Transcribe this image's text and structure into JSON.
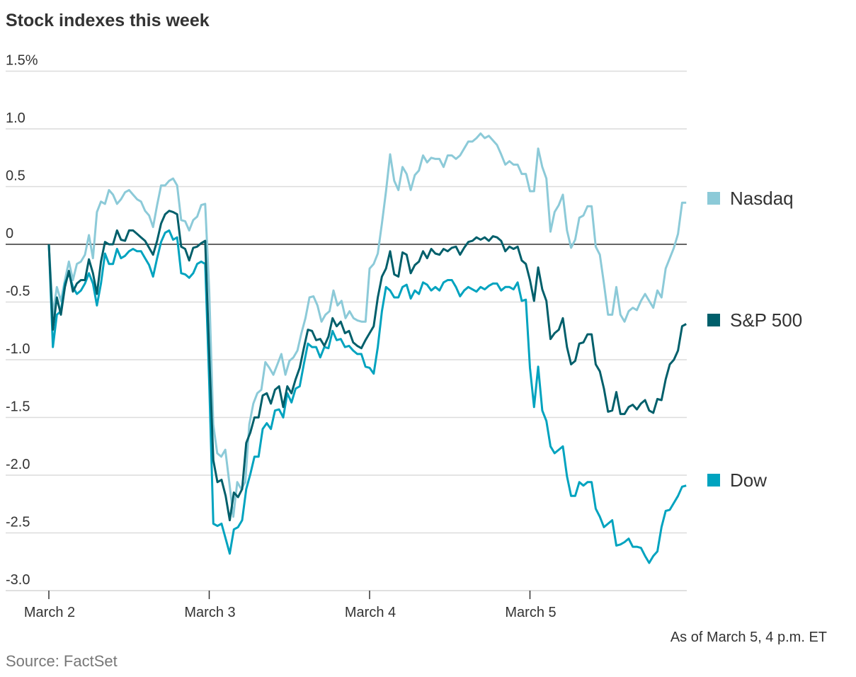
{
  "chart_data": {
    "type": "line",
    "title": "Stock indexes this week",
    "xlabel": "",
    "ylabel": "",
    "note": "As of March 5, 4 p.m. ET",
    "source": "Source: FactSet",
    "x_categories": [
      "March 2",
      "March 3",
      "March 4",
      "March 5"
    ],
    "x_unit": "trading day (each day's values evenly spaced from open to close)",
    "ylim": [
      -3.0,
      1.5
    ],
    "y_ticks": [
      1.5,
      1.0,
      0.5,
      0,
      -0.5,
      -1.0,
      -1.5,
      -2.0,
      -2.5,
      -3.0
    ],
    "y_tick_labels": [
      "1.5%",
      "1.0",
      "0.5",
      "0",
      "-0.5",
      "-1.0",
      "-1.5",
      "-2.0",
      "-2.5",
      "-3.0"
    ],
    "grid": true,
    "legend_placement": "right",
    "series": [
      {
        "name": "Nasdaq",
        "color": "#8ccad8",
        "days": [
          [
            0,
            -0.61,
            -0.37,
            -0.49,
            -0.31,
            -0.15,
            -0.31,
            -0.17,
            -0.15,
            -0.09,
            0.08,
            -0.12,
            0.28,
            0.37,
            0.35,
            0.47,
            0.43,
            0.35,
            0.39,
            0.45,
            0.47,
            0.43,
            0.39,
            0.37,
            0.29,
            0.25,
            0.15,
            0.34,
            0.51,
            0.51,
            0.55,
            0.57,
            0.51,
            0.21,
            0.2,
            0.12,
            0.21,
            0.24,
            0.34,
            0.35
          ],
          [
            -0.4,
            -1.56,
            -1.81,
            -1.84,
            -1.78,
            -2.06,
            -2.36,
            -2.06,
            -2.12,
            -2.06,
            -1.56,
            -1.38,
            -1.29,
            -1.26,
            -1.02,
            -1.07,
            -1.13,
            -1.04,
            -0.95,
            -1.13,
            -1.01,
            -0.98,
            -0.92,
            -0.77,
            -0.64,
            -0.46,
            -0.45,
            -0.53,
            -0.67,
            -0.61,
            -0.58,
            -0.4,
            -0.53,
            -0.49,
            -0.64,
            -0.58,
            -0.64,
            -0.66,
            -0.67,
            -0.67
          ],
          [
            -0.21,
            -0.17,
            -0.08,
            0.18,
            0.46,
            0.78,
            0.55,
            0.47,
            0.67,
            0.61,
            0.47,
            0.6,
            0.64,
            0.77,
            0.71,
            0.75,
            0.74,
            0.74,
            0.67,
            0.77,
            0.77,
            0.74,
            0.77,
            0.83,
            0.89,
            0.89,
            0.92,
            0.96,
            0.92,
            0.94,
            0.9,
            0.86,
            0.78,
            0.69,
            0.72,
            0.69,
            0.69,
            0.61,
            0.61
          ],
          [
            0.46,
            0.46,
            0.83,
            0.67,
            0.57,
            0.11,
            0.28,
            0.34,
            0.43,
            0.12,
            -0.03,
            0.04,
            0.23,
            0.25,
            0.33,
            0.33,
            -0.02,
            -0.09,
            -0.34,
            -0.61,
            -0.61,
            -0.37,
            -0.61,
            -0.67,
            -0.58,
            -0.55,
            -0.57,
            -0.49,
            -0.43,
            -0.49,
            -0.55,
            -0.4,
            -0.46,
            -0.21,
            -0.12,
            -0.03,
            0.09,
            0.36,
            0.36
          ]
        ]
      },
      {
        "name": "S&P 500",
        "color": "#005f6b",
        "days": [
          [
            0,
            -0.74,
            -0.46,
            -0.61,
            -0.37,
            -0.23,
            -0.41,
            -0.34,
            -0.31,
            -0.31,
            -0.13,
            -0.25,
            -0.43,
            -0.15,
            0.02,
            0,
            0,
            0.12,
            0.04,
            0.03,
            0.12,
            0.12,
            0.09,
            0.06,
            0.03,
            -0.03,
            -0.09,
            0.03,
            0.18,
            0.26,
            0.29,
            0.28,
            0.26,
            -0.02,
            -0.04,
            -0.14,
            -0.03,
            -0.02,
            0.01,
            0.03
          ],
          [
            -0.95,
            -1.87,
            -2.06,
            -2.04,
            -2.18,
            -2.39,
            -2.15,
            -2.19,
            -2.12,
            -1.72,
            -1.63,
            -1.5,
            -1.5,
            -1.31,
            -1.29,
            -1.38,
            -1.26,
            -1.23,
            -1.41,
            -1.23,
            -1.29,
            -1.17,
            -1.07,
            -0.9,
            -0.74,
            -0.75,
            -0.83,
            -0.82,
            -0.88,
            -0.8,
            -0.64,
            -0.71,
            -0.67,
            -0.77,
            -0.75,
            -0.85,
            -0.88,
            -0.9,
            -0.83
          ],
          [
            -0.77,
            -0.71,
            -0.46,
            -0.28,
            -0.21,
            -0.06,
            -0.26,
            -0.28,
            -0.07,
            -0.09,
            -0.25,
            -0.18,
            -0.15,
            -0.06,
            -0.12,
            -0.04,
            -0.08,
            -0.09,
            -0.04,
            -0.06,
            -0.03,
            -0.02,
            -0.09,
            -0.03,
            0.02,
            0.03,
            0.06,
            0.04,
            0.06,
            0.03,
            0.07,
            0.06,
            0.03,
            -0.06,
            -0.02,
            -0.04,
            -0.02,
            -0.14,
            -0.17
          ],
          [
            -0.31,
            -0.49,
            -0.2,
            -0.39,
            -0.49,
            -0.82,
            -0.77,
            -0.74,
            -0.64,
            -0.89,
            -1.04,
            -1.01,
            -0.86,
            -0.85,
            -0.78,
            -0.78,
            -1.04,
            -1.1,
            -1.25,
            -1.45,
            -1.44,
            -1.28,
            -1.47,
            -1.47,
            -1.41,
            -1.39,
            -1.43,
            -1.38,
            -1.35,
            -1.44,
            -1.46,
            -1.34,
            -1.35,
            -1.17,
            -1.04,
            -1.0,
            -0.92,
            -0.71,
            -0.69
          ]
        ]
      },
      {
        "name": "Dow",
        "color": "#00a3bf",
        "days": [
          [
            0,
            -0.89,
            -0.61,
            -0.58,
            -0.34,
            -0.25,
            -0.37,
            -0.43,
            -0.4,
            -0.34,
            -0.25,
            -0.34,
            -0.53,
            -0.34,
            -0.08,
            -0.17,
            -0.17,
            -0.04,
            -0.12,
            -0.1,
            -0.06,
            -0.04,
            -0.06,
            -0.06,
            -0.12,
            -0.18,
            -0.28,
            -0.12,
            0.02,
            0.1,
            0.12,
            0.04,
            0.06,
            -0.25,
            -0.26,
            -0.29,
            -0.25,
            -0.17,
            -0.15,
            -0.17
          ],
          [
            -1.2,
            -2.42,
            -2.44,
            -2.42,
            -2.55,
            -2.68,
            -2.47,
            -2.45,
            -2.39,
            -2.12,
            -1.99,
            -1.84,
            -1.84,
            -1.6,
            -1.55,
            -1.6,
            -1.44,
            -1.43,
            -1.5,
            -1.29,
            -1.37,
            -1.25,
            -1.23,
            -1.04,
            -0.86,
            -0.89,
            -0.89,
            -0.98,
            -0.89,
            -0.9,
            -0.75,
            -0.83,
            -0.82,
            -0.89,
            -0.88,
            -0.92,
            -0.95,
            -0.95,
            -1.06
          ],
          [
            -1.07,
            -1.12,
            -0.89,
            -0.58,
            -0.37,
            -0.4,
            -0.46,
            -0.46,
            -0.37,
            -0.35,
            -0.47,
            -0.4,
            -0.43,
            -0.33,
            -0.35,
            -0.4,
            -0.37,
            -0.4,
            -0.33,
            -0.31,
            -0.31,
            -0.37,
            -0.45,
            -0.4,
            -0.37,
            -0.39,
            -0.41,
            -0.37,
            -0.39,
            -0.36,
            -0.34,
            -0.34,
            -0.4,
            -0.37,
            -0.37,
            -0.39,
            -0.33,
            -0.49,
            -0.48
          ],
          [
            -1.07,
            -1.41,
            -1.06,
            -1.44,
            -1.53,
            -1.75,
            -1.81,
            -1.78,
            -1.75,
            -2.01,
            -2.18,
            -2.18,
            -2.06,
            -2.09,
            -2.06,
            -2.06,
            -2.29,
            -2.36,
            -2.45,
            -2.42,
            -2.39,
            -2.61,
            -2.6,
            -2.58,
            -2.55,
            -2.62,
            -2.62,
            -2.63,
            -2.7,
            -2.76,
            -2.7,
            -2.66,
            -2.45,
            -2.31,
            -2.3,
            -2.24,
            -2.18,
            -2.1,
            -2.09
          ]
        ]
      }
    ]
  }
}
